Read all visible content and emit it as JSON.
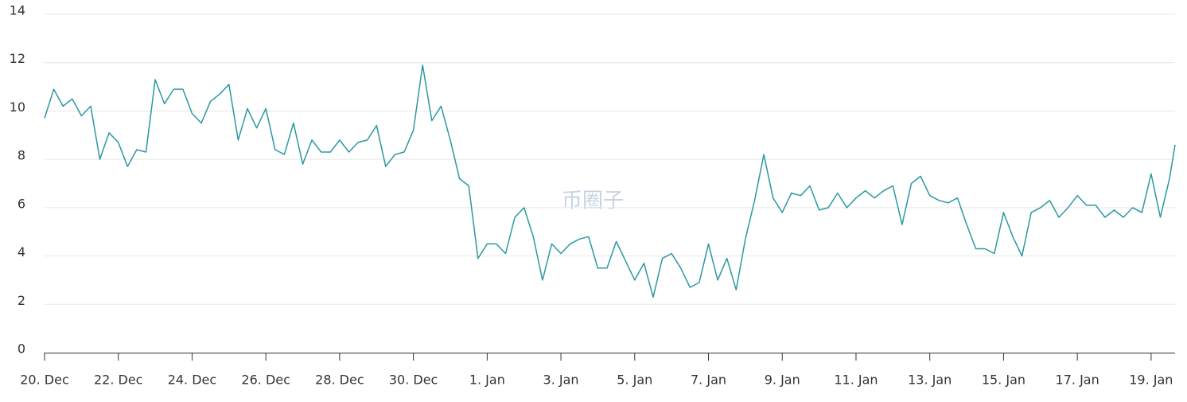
{
  "chart_data": {
    "type": "line",
    "watermark": "币圈子",
    "x": [
      0,
      0.25,
      0.5,
      0.75,
      1,
      1.25,
      1.5,
      1.75,
      2,
      2.25,
      2.5,
      2.75,
      3,
      3.25,
      3.5,
      3.75,
      4,
      4.25,
      4.5,
      4.75,
      5,
      5.25,
      5.5,
      5.75,
      6,
      6.25,
      6.5,
      6.75,
      7,
      7.25,
      7.5,
      7.75,
      8,
      8.25,
      8.5,
      8.75,
      9,
      9.25,
      9.5,
      9.75,
      10,
      10.25,
      10.5,
      10.75,
      11,
      11.25,
      11.5,
      11.75,
      12,
      12.25,
      12.5,
      12.75,
      13,
      13.25,
      13.5,
      13.75,
      14,
      14.25,
      14.5,
      14.75,
      15,
      15.25,
      15.5,
      15.75,
      16,
      16.25,
      16.5,
      16.75,
      17,
      17.25,
      17.5,
      17.75,
      18,
      18.25,
      18.5,
      18.75,
      19,
      19.25,
      19.5,
      19.75,
      20,
      20.25,
      20.5,
      20.75,
      21,
      21.25,
      21.5,
      21.75,
      22,
      22.25,
      22.5,
      22.75,
      23,
      23.25,
      23.5,
      23.75,
      24,
      24.25,
      24.5,
      24.75,
      25,
      25.25,
      25.5,
      25.75,
      26,
      26.25,
      26.5,
      26.75,
      27,
      27.25,
      27.5,
      27.75,
      28,
      28.25,
      28.5,
      28.75,
      29,
      29.25,
      29.5,
      29.75,
      30,
      30.25,
      30.5,
      30.65
    ],
    "series": [
      {
        "color": "#2b98a1",
        "values": [
          9.7,
          10.9,
          10.2,
          10.5,
          9.8,
          10.2,
          8.0,
          9.1,
          8.7,
          7.7,
          8.4,
          8.3,
          11.3,
          10.3,
          10.9,
          10.9,
          9.9,
          9.5,
          10.4,
          10.7,
          11.1,
          8.8,
          10.1,
          9.3,
          10.1,
          8.4,
          8.2,
          9.5,
          7.8,
          8.8,
          8.3,
          8.3,
          8.8,
          8.3,
          8.7,
          8.8,
          9.4,
          7.7,
          8.2,
          8.3,
          9.2,
          11.9,
          9.6,
          10.2,
          8.8,
          7.2,
          6.9,
          3.9,
          4.5,
          4.5,
          4.1,
          5.6,
          6.0,
          4.8,
          3.0,
          4.5,
          4.1,
          4.5,
          4.7,
          4.8,
          3.5,
          3.5,
          4.6,
          3.8,
          3.0,
          3.7,
          2.3,
          3.9,
          4.1,
          3.5,
          2.7,
          2.9,
          4.5,
          3.0,
          3.9,
          2.6,
          4.7,
          6.3,
          8.2,
          6.4,
          5.8,
          6.6,
          6.5,
          6.9,
          5.9,
          6.0,
          6.6,
          6.0,
          6.4,
          6.7,
          6.4,
          6.7,
          6.9,
          5.3,
          7.0,
          7.3,
          6.5,
          6.3,
          6.2,
          6.4,
          5.3,
          4.3,
          4.3,
          4.1,
          5.8,
          4.8,
          4.0,
          5.8,
          6.0,
          6.3,
          5.6,
          6.0,
          6.5,
          6.1,
          6.1,
          5.6,
          5.9,
          5.6,
          6.0,
          5.8,
          7.4,
          5.6,
          7.2,
          8.6
        ]
      }
    ],
    "xlim": [
      0,
      30.65
    ],
    "xticks": [
      {
        "value": 0,
        "label": "20. Dec"
      },
      {
        "value": 2,
        "label": "22. Dec"
      },
      {
        "value": 4,
        "label": "24. Dec"
      },
      {
        "value": 6,
        "label": "26. Dec"
      },
      {
        "value": 8,
        "label": "28. Dec"
      },
      {
        "value": 10,
        "label": "30. Dec"
      },
      {
        "value": 12,
        "label": "1. Jan"
      },
      {
        "value": 14,
        "label": "3. Jan"
      },
      {
        "value": 16,
        "label": "5. Jan"
      },
      {
        "value": 18,
        "label": "7. Jan"
      },
      {
        "value": 20,
        "label": "9. Jan"
      },
      {
        "value": 22,
        "label": "11. Jan"
      },
      {
        "value": 24,
        "label": "13. Jan"
      },
      {
        "value": 26,
        "label": "15. Jan"
      },
      {
        "value": 28,
        "label": "17. Jan"
      },
      {
        "value": 30,
        "label": "19. Jan"
      }
    ],
    "ylim": [
      0,
      14
    ],
    "yticks": [
      0,
      2,
      4,
      6,
      8,
      10,
      12,
      14
    ],
    "grid": true
  }
}
